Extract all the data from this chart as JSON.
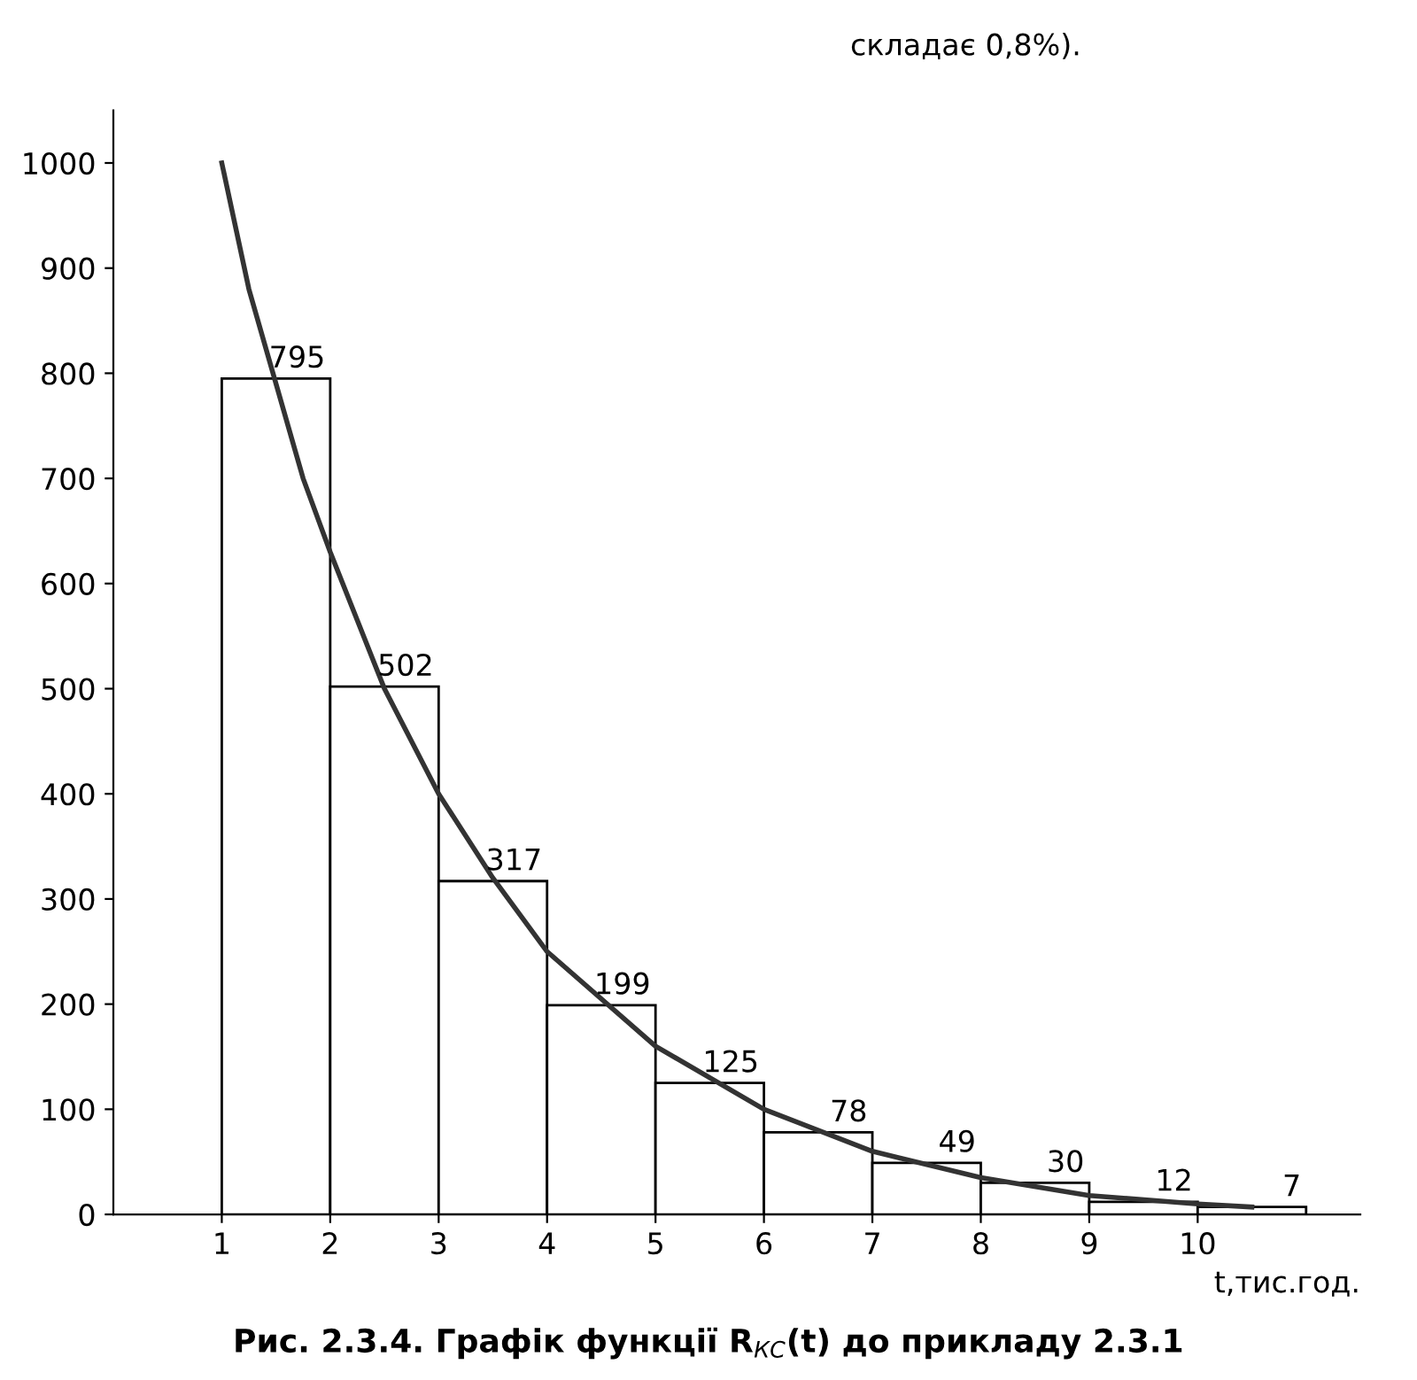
{
  "chart_data": {
    "type": "histogram",
    "title": "Рис. 2.3.4. Графік функції R$_{КС}$(t) до прикладу 2.3.1",
    "xlabel": "t,тис.год.",
    "annotations": [
      "складає 0,8%)."
    ],
    "bins": [
      1,
      2,
      3,
      4,
      5,
      6,
      7,
      8,
      9,
      10,
      11
    ],
    "values": [
      795,
      502,
      317,
      199,
      125,
      78,
      49,
      30,
      12,
      7
    ],
    "color": "#ffffff",
    "value_labels": [
      "795",
      "502",
      "317",
      "199",
      "125",
      "78",
      "49",
      "30",
      "12",
      "7"
    ],
    "series": [
      {
        "type": "line",
        "color": "#333333",
        "x": [
          1,
          1.25,
          1.5,
          1.75,
          2,
          2.5,
          3,
          3.5,
          4,
          5,
          6,
          7,
          8,
          9,
          10,
          10.5
        ],
        "values": [
          1000,
          880,
          790,
          700,
          630,
          500,
          400,
          320,
          250,
          160,
          100,
          60,
          35,
          18,
          10,
          7
        ]
      }
    ],
    "xlim": [
      0,
      11.5
    ],
    "xticks": [
      1,
      2,
      3,
      4,
      5,
      6,
      7,
      8,
      9,
      10
    ],
    "ylim": [
      0,
      1050
    ],
    "yticks": [
      0,
      100,
      200,
      300,
      400,
      500,
      600,
      700,
      800,
      900,
      1000
    ],
    "grid": false
  }
}
